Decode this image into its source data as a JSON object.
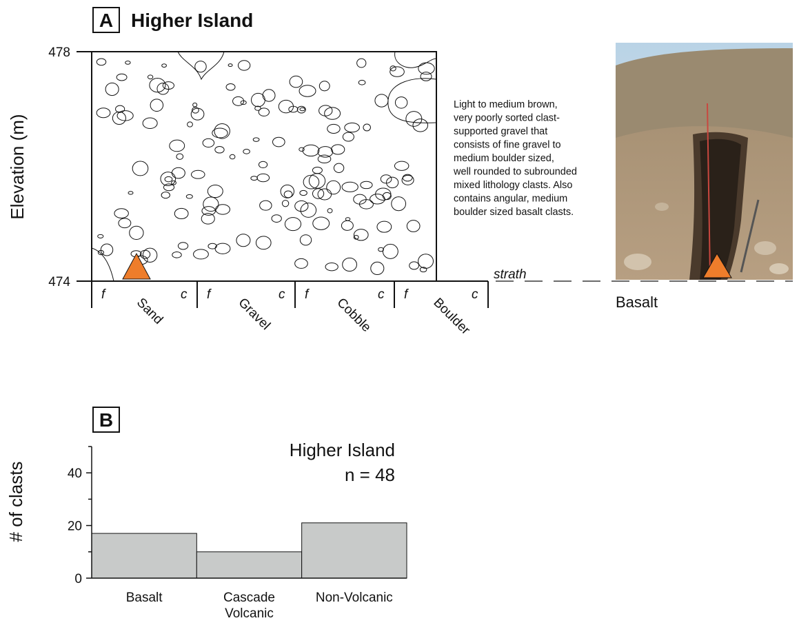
{
  "panel_a": {
    "label": "A",
    "title": "Higher Island",
    "y_label": "Elevation (m)",
    "ylim": [
      474,
      478
    ],
    "yticks": [
      474,
      478
    ],
    "grain_classes": [
      "Sand",
      "Gravel",
      "Cobble",
      "Boulder"
    ],
    "fine": "f",
    "coarse": "c",
    "strath": "strath",
    "bedrock": "Basalt",
    "description": [
      "Light to medium brown,",
      "very poorly sorted clast-",
      "supported gravel that",
      "consists of fine gravel to",
      "medium boulder sized,",
      "well rounded to subrounded",
      "mixed lithology clasts. Also",
      "contains angular, medium",
      "boulder sized basalt clasts."
    ]
  },
  "chart_data": {
    "type": "bar",
    "label": "B",
    "y_label": "# of clasts",
    "annotation": [
      "Higher Island",
      "n = 48"
    ],
    "categories": [
      "Basalt",
      "Cascade Volcanic",
      "Non-Volcanic"
    ],
    "values": [
      17,
      10,
      21
    ],
    "color": "#c8cac9",
    "ylim": [
      0,
      50
    ],
    "yticks": [
      0,
      20,
      40
    ],
    "minor_yticks": [
      10,
      30,
      50
    ]
  }
}
